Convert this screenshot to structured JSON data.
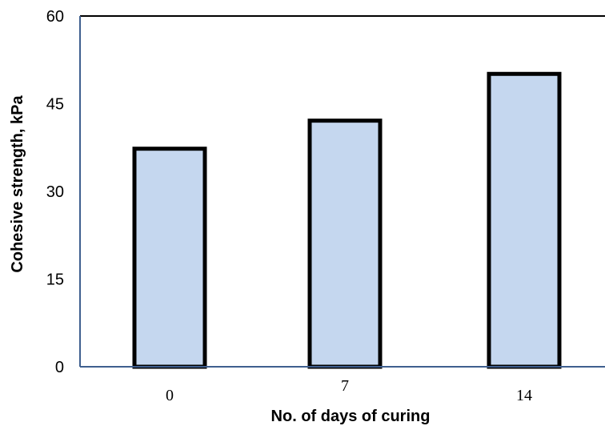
{
  "chart_data": {
    "type": "bar",
    "title": "",
    "xlabel": "No. of days of curing",
    "ylabel": "Cohesive  strength, kPa",
    "categories": [
      "0",
      "7",
      "14"
    ],
    "values": [
      37.3,
      42.1,
      50.1
    ],
    "ylim": [
      0,
      60
    ],
    "yticks": [
      "0",
      "15",
      "30",
      "45",
      "60"
    ],
    "grid": false,
    "legend": "none",
    "colors": {
      "bar_fill": "#c5d7ef",
      "bar_stroke": "#000000",
      "axis": "#3f5f8f",
      "frame": "#000000"
    }
  }
}
